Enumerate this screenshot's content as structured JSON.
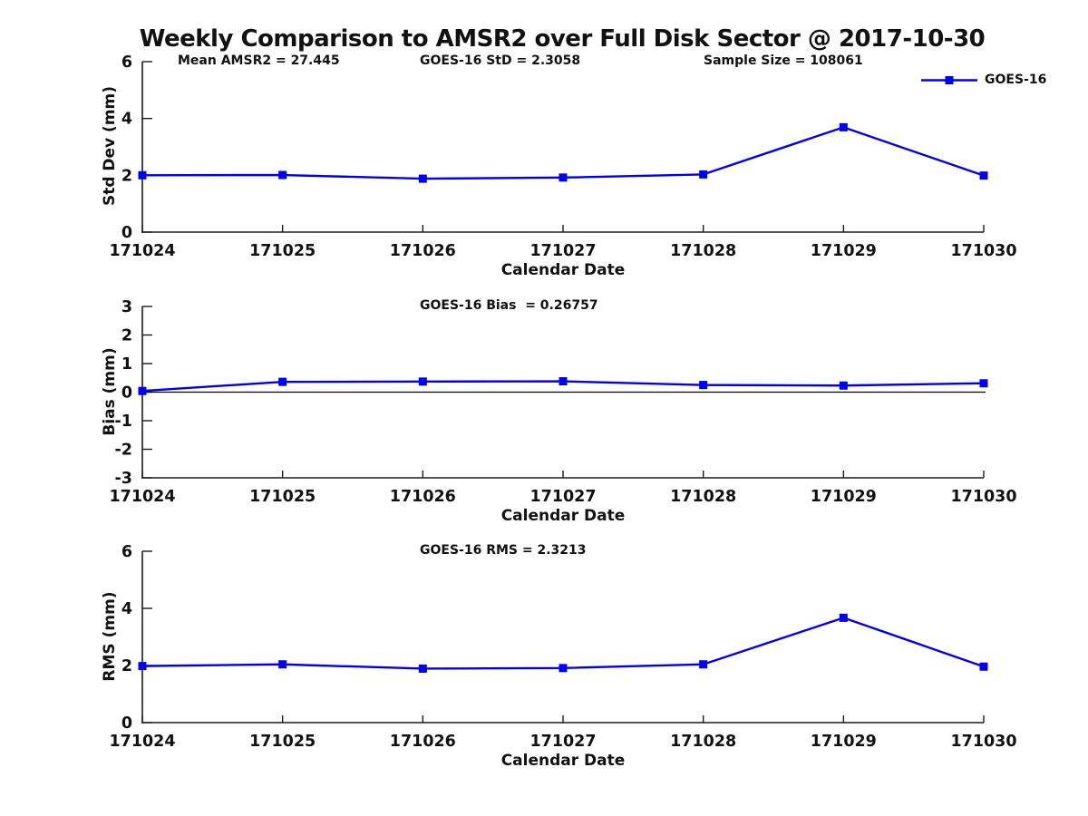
{
  "title": "Weekly Comparison to AMSR2 over Full Disk Sector @ 2017-10-30",
  "colors": {
    "series": "#0000EE",
    "axis": "#1a1a1a",
    "text": "#111111",
    "zero_line": "#000000"
  },
  "chart_data": [
    {
      "id": "std_dev",
      "type": "line",
      "marker": "square",
      "categories": [
        "171024",
        "171025",
        "171026",
        "171027",
        "171028",
        "171029",
        "171030"
      ],
      "series": [
        {
          "name": "GOES-16",
          "values": [
            2.0,
            2.01,
            1.88,
            1.92,
            2.03,
            3.69,
            1.99
          ]
        }
      ],
      "xlabel": "Calendar Date",
      "ylabel": "Std Dev (mm)",
      "ylim": [
        0,
        6
      ],
      "yticks": [
        0,
        2,
        4,
        6
      ],
      "grid": false,
      "legend_position": "top-right",
      "annotations": [
        "Mean AMSR2 = 27.445",
        "GOES-16 StD = 2.3058",
        "Sample Size = 108061"
      ]
    },
    {
      "id": "bias",
      "type": "line",
      "marker": "square",
      "categories": [
        "171024",
        "171025",
        "171026",
        "171027",
        "171028",
        "171029",
        "171030"
      ],
      "series": [
        {
          "name": "GOES-16",
          "values": [
            0.04,
            0.36,
            0.37,
            0.38,
            0.25,
            0.23,
            0.31
          ]
        }
      ],
      "xlabel": "Calendar Date",
      "ylabel": "Bias (mm)",
      "ylim": [
        -3,
        3
      ],
      "yticks": [
        -3,
        -2,
        -1,
        0,
        1,
        2,
        3
      ],
      "grid": false,
      "zero_line": true,
      "annotations": [
        "GOES-16 Bias  = 0.26757"
      ]
    },
    {
      "id": "rms",
      "type": "line",
      "marker": "square",
      "categories": [
        "171024",
        "171025",
        "171026",
        "171027",
        "171028",
        "171029",
        "171030"
      ],
      "series": [
        {
          "name": "GOES-16",
          "values": [
            1.98,
            2.04,
            1.89,
            1.91,
            2.04,
            3.67,
            1.96
          ]
        }
      ],
      "xlabel": "Calendar Date",
      "ylabel": "RMS (mm)",
      "ylim": [
        0,
        6
      ],
      "yticks": [
        0,
        2,
        4,
        6
      ],
      "grid": false,
      "annotations": [
        "GOES-16 RMS = 2.3213"
      ]
    }
  ]
}
